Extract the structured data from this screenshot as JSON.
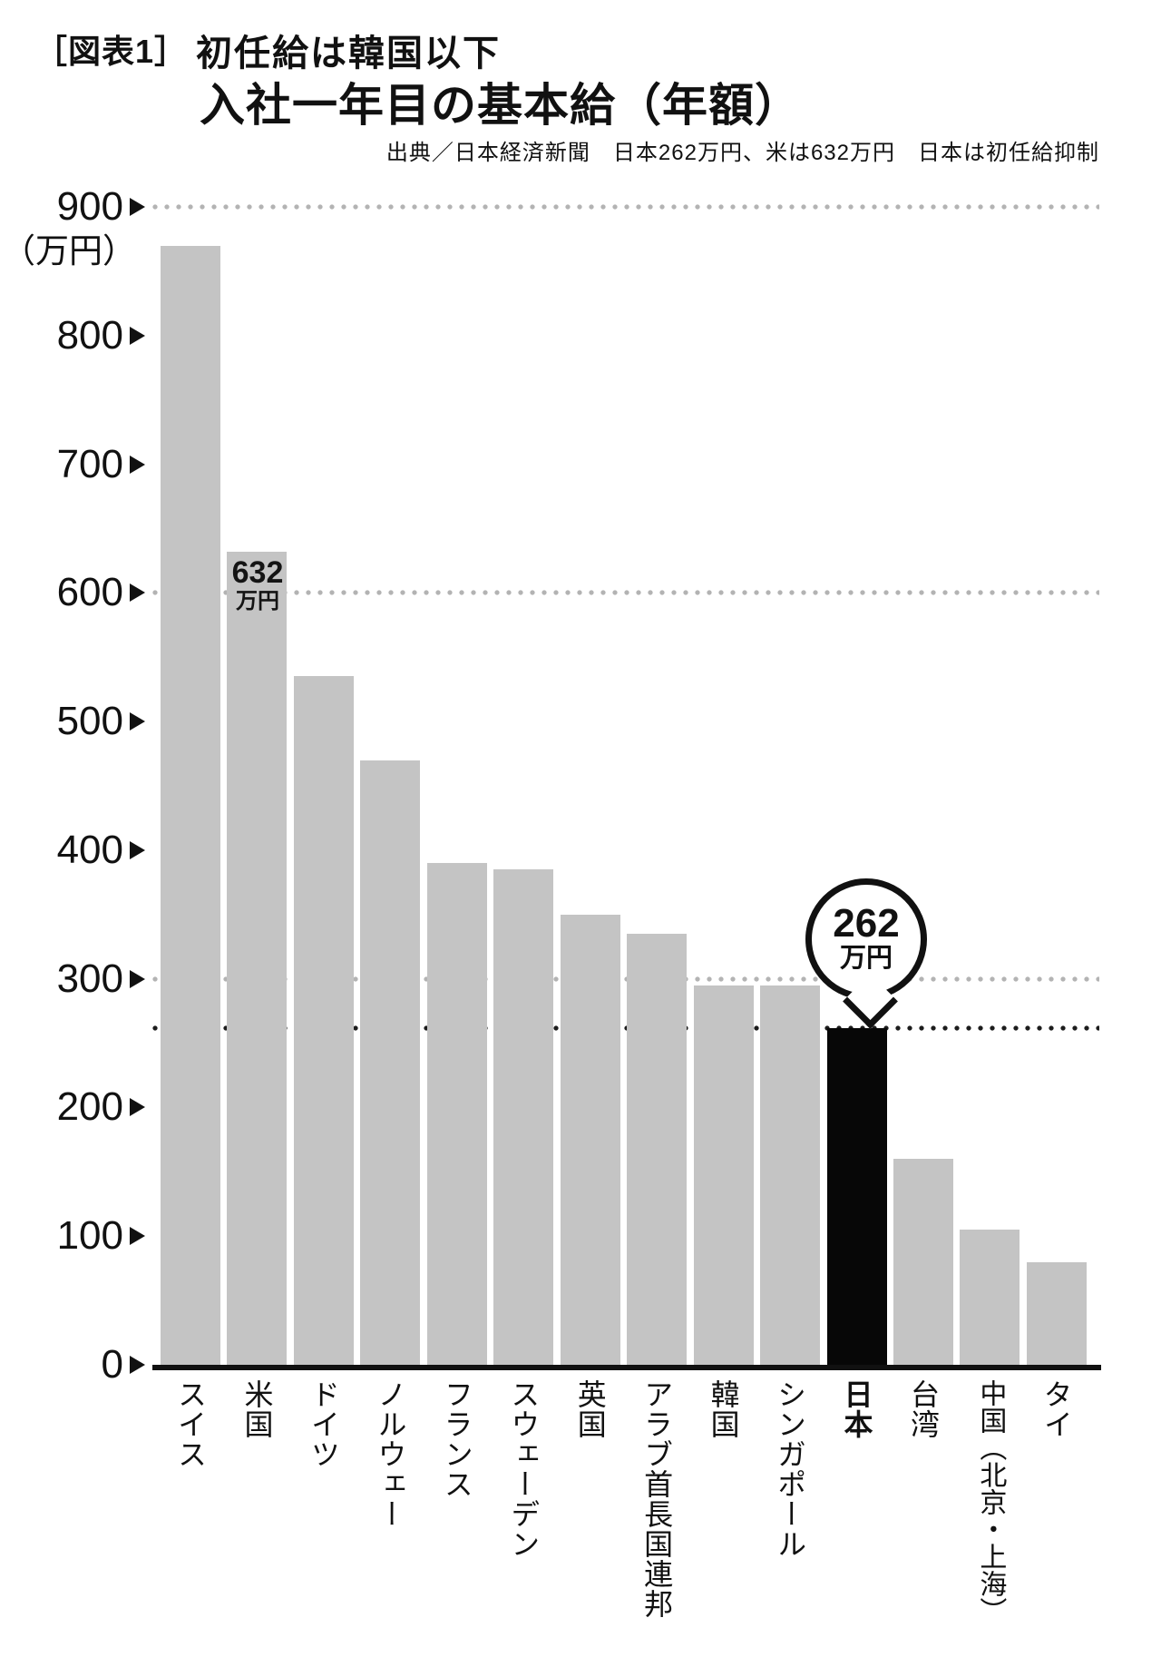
{
  "figure": {
    "tag": "［図表1］",
    "headline": "初任給は韓国以下",
    "title": "入社一年目の基本給（年額）",
    "source_note": "出典／日本経済新聞　日本262万円、米は632万円　日本は初任給抑制"
  },
  "y_axis": {
    "unit_label": "（万円）",
    "ticks": [
      900,
      800,
      700,
      600,
      500,
      400,
      300,
      200,
      100,
      0
    ]
  },
  "chart_data": {
    "type": "bar",
    "title": "入社一年目の基本給（年額）",
    "ylabel": "（万円）",
    "ylim": [
      0,
      900
    ],
    "ytick_step": 100,
    "categories": [
      "スイス",
      "米国",
      "ドイツ",
      "ノルウェー",
      "フランス",
      "スウェーデン",
      "英国",
      "アラブ首長国連邦",
      "韓国",
      "シンガポール",
      "日本",
      "台湾",
      "中国（北京・上海）",
      "タイ"
    ],
    "values": [
      870,
      632,
      535,
      470,
      390,
      385,
      350,
      335,
      295,
      295,
      262,
      160,
      105,
      80
    ],
    "highlight_index": 10,
    "dotted_gridlines_at": [
      900,
      600,
      300
    ],
    "reference_line_at": 262,
    "grid_on": true,
    "legend": "none",
    "colors": {
      "bar": "#c4c4c4",
      "highlight_bar": "#070707",
      "grid_dots": "#b3b3b3",
      "reference_dots": "#1c1c1c",
      "axis": "#111111"
    },
    "value_labels": [
      {
        "index": 1,
        "value": "632",
        "unit": "万円",
        "style": "inline-top"
      },
      {
        "index": 10,
        "value": "262",
        "unit": "万円",
        "style": "balloon"
      }
    ]
  }
}
